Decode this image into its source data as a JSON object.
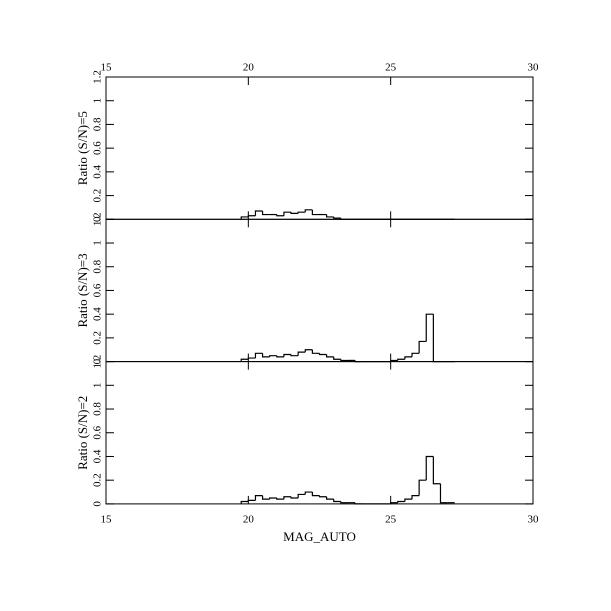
{
  "chart_data": [
    {
      "type": "histogram",
      "ylabel": "Ratio (S/N)=5",
      "bins": [
        19.75,
        20,
        20.25,
        20.5,
        20.75,
        21,
        21.25,
        21.5,
        21.75,
        22,
        22.25,
        22.5,
        22.75,
        23,
        23.25,
        23.5,
        23.75,
        24,
        24.25,
        24.5,
        24.75,
        25,
        25.25,
        25.5,
        25.75,
        26,
        26.25,
        26.5,
        26.75,
        27,
        27.25
      ],
      "values": [
        0.02,
        0.03,
        0.07,
        0.04,
        0.04,
        0.03,
        0.06,
        0.05,
        0.06,
        0.08,
        0.04,
        0.04,
        0.02,
        0.01,
        0,
        0,
        0,
        0,
        0,
        0,
        0,
        0,
        0,
        0,
        0,
        0,
        0,
        0,
        0,
        0
      ],
      "xlim": [
        15,
        30
      ],
      "xticks": [
        15,
        20,
        25,
        30
      ],
      "xtick_label_side": "top",
      "ylim": [
        0,
        1.2
      ],
      "yticks": [
        0,
        0.2,
        0.4,
        0.6,
        0.8,
        1,
        1.2
      ],
      "color": "#000000"
    },
    {
      "type": "histogram",
      "ylabel": "Ratio (S/N)=3",
      "bins": [
        19.75,
        20,
        20.25,
        20.5,
        20.75,
        21,
        21.25,
        21.5,
        21.75,
        22,
        22.25,
        22.5,
        22.75,
        23,
        23.25,
        23.5,
        23.75,
        24,
        24.25,
        24.5,
        24.75,
        25,
        25.25,
        25.5,
        25.75,
        26,
        26.25,
        26.5,
        26.75,
        27,
        27.25
      ],
      "values": [
        0.02,
        0.03,
        0.07,
        0.04,
        0.05,
        0.04,
        0.06,
        0.05,
        0.08,
        0.1,
        0.07,
        0.06,
        0.04,
        0.02,
        0.01,
        0.01,
        0,
        0,
        0,
        0,
        0,
        0.01,
        0.02,
        0.04,
        0.07,
        0.17,
        0.4,
        0,
        0,
        0
      ],
      "xlim": [
        15,
        30
      ],
      "xticks": [
        15,
        20,
        25,
        30
      ],
      "ylim": [
        0,
        1.2
      ],
      "yticks": [
        0,
        0.2,
        0.4,
        0.6,
        0.8,
        1,
        1.2
      ],
      "color": "#000000"
    },
    {
      "type": "histogram",
      "ylabel": "Ratio (S/N)=2",
      "xlabel": "MAG_AUTO",
      "bins": [
        19.75,
        20,
        20.25,
        20.5,
        20.75,
        21,
        21.25,
        21.5,
        21.75,
        22,
        22.25,
        22.5,
        22.75,
        23,
        23.25,
        23.5,
        23.75,
        24,
        24.25,
        24.5,
        24.75,
        25,
        25.25,
        25.5,
        25.75,
        26,
        26.25,
        26.5,
        26.75,
        27,
        27.25
      ],
      "values": [
        0.02,
        0.03,
        0.07,
        0.04,
        0.05,
        0.04,
        0.06,
        0.05,
        0.08,
        0.1,
        0.07,
        0.06,
        0.04,
        0.02,
        0.01,
        0.01,
        0,
        0,
        0,
        0,
        0,
        0.01,
        0.02,
        0.04,
        0.07,
        0.2,
        0.4,
        0.17,
        0.01,
        0.01
      ],
      "xlim": [
        15,
        30
      ],
      "xticks": [
        15,
        20,
        25,
        30
      ],
      "xtick_label_side": "bottom",
      "ylim": [
        0,
        1.2
      ],
      "yticks": [
        0,
        0.2,
        0.4,
        0.6,
        0.8,
        1,
        1.2
      ],
      "color": "#000000"
    }
  ]
}
